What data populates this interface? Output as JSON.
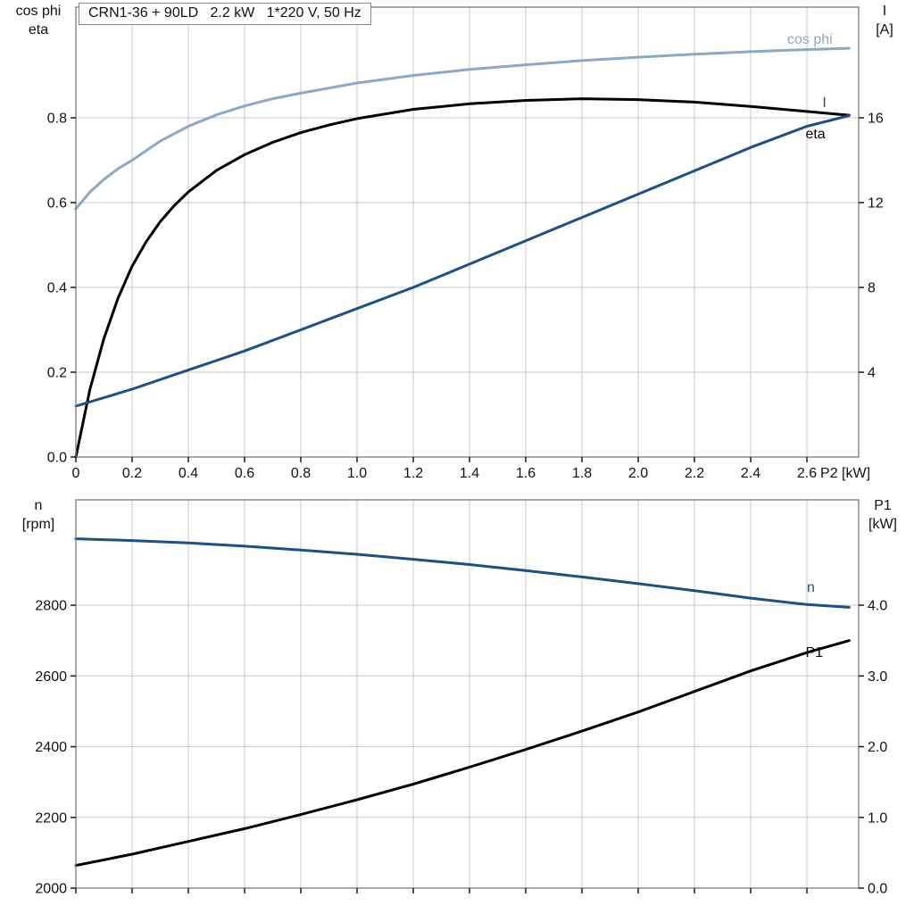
{
  "title": "CRN1-36 + 90LD   2.2 kW   1*220 V, 50 Hz",
  "colors": {
    "cos_phi": "#8aa9c9",
    "current": "#1b5186",
    "speed": "#1b5186",
    "eta": "#000000",
    "power": "#000000",
    "grid": "#c9c9c9"
  },
  "chart_data": [
    {
      "type": "line",
      "title": "CRN1-36 + 90LD   2.2 kW   1*220 V, 50 Hz",
      "x_axis": {
        "unit_label": "P2 [kW]",
        "range": [
          0,
          2.784
        ],
        "tick_values": [
          0,
          0.2,
          0.4,
          0.6,
          0.8,
          1.0,
          1.2,
          1.4,
          1.6,
          1.8,
          2.0,
          2.2,
          2.4,
          2.6
        ],
        "tick_labels": [
          "0",
          "0.2",
          "0.4",
          "0.6",
          "0.8",
          "1.0",
          "1.2",
          "1.4",
          "1.6",
          "1.8",
          "2.0",
          "2.2",
          "2.4",
          "2.6"
        ]
      },
      "left_axis": {
        "label_lines": [
          "cos phi",
          "eta"
        ],
        "range": [
          0,
          1.061
        ],
        "tick_values": [
          0,
          0.2,
          0.4,
          0.6,
          0.8
        ],
        "tick_labels": [
          "0.0",
          "0.2",
          "0.4",
          "0.6",
          "0.8"
        ]
      },
      "right_axis": {
        "label_lines": [
          "I",
          "[A]"
        ],
        "range": [
          0,
          21.22
        ],
        "tick_values": [
          4,
          8,
          12,
          16
        ],
        "tick_labels": [
          "4",
          "8",
          "12",
          "16"
        ]
      },
      "series": [
        {
          "id": "cos-phi",
          "name": "cos phi",
          "axis": "left",
          "color": "#8aa9c9",
          "label": {
            "x": 2.53,
            "y": 0.975
          },
          "x": [
            0,
            0.05,
            0.1,
            0.15,
            0.2,
            0.3,
            0.4,
            0.5,
            0.6,
            0.7,
            0.8,
            1.0,
            1.2,
            1.4,
            1.6,
            1.8,
            2.0,
            2.2,
            2.4,
            2.6,
            2.75
          ],
          "y": [
            0.585,
            0.625,
            0.655,
            0.68,
            0.7,
            0.745,
            0.78,
            0.807,
            0.828,
            0.845,
            0.858,
            0.882,
            0.9,
            0.914,
            0.925,
            0.935,
            0.943,
            0.95,
            0.956,
            0.961,
            0.964
          ]
        },
        {
          "id": "eta",
          "name": "eta",
          "axis": "left",
          "color": "#000000",
          "label": {
            "x": 2.595,
            "y": 0.752
          },
          "x": [
            0,
            0.05,
            0.1,
            0.15,
            0.2,
            0.25,
            0.3,
            0.35,
            0.4,
            0.5,
            0.6,
            0.7,
            0.8,
            0.9,
            1.0,
            1.2,
            1.4,
            1.6,
            1.8,
            2.0,
            2.2,
            2.4,
            2.6,
            2.75
          ],
          "y": [
            0,
            0.16,
            0.28,
            0.375,
            0.45,
            0.508,
            0.555,
            0.593,
            0.625,
            0.676,
            0.713,
            0.742,
            0.765,
            0.783,
            0.798,
            0.82,
            0.833,
            0.841,
            0.845,
            0.843,
            0.837,
            0.827,
            0.815,
            0.806
          ]
        },
        {
          "id": "current-I",
          "name": "I",
          "axis": "right",
          "color": "#1b5186",
          "label": {
            "x": 2.655,
            "y": 16.5
          },
          "x": [
            0,
            0.2,
            0.4,
            0.6,
            0.8,
            1.0,
            1.2,
            1.4,
            1.6,
            1.8,
            2.0,
            2.2,
            2.4,
            2.6,
            2.75
          ],
          "y": [
            2.4,
            3.2,
            4.1,
            5.0,
            6.0,
            7.0,
            8.0,
            9.1,
            10.2,
            11.3,
            12.4,
            13.5,
            14.6,
            15.6,
            16.1
          ]
        }
      ]
    },
    {
      "type": "line",
      "title": "",
      "x_axis": {
        "unit_label": "",
        "range": [
          0,
          2.784
        ],
        "tick_values": [
          0,
          0.2,
          0.4,
          0.6,
          0.8,
          1.0,
          1.2,
          1.4,
          1.6,
          1.8,
          2.0,
          2.2,
          2.4,
          2.6
        ],
        "tick_labels": []
      },
      "left_axis": {
        "label_lines": [
          "n",
          "[rpm]"
        ],
        "range": [
          2000,
          3098
        ],
        "tick_values": [
          2000,
          2200,
          2400,
          2600,
          2800
        ],
        "tick_labels": [
          "2000",
          "2200",
          "2400",
          "2600",
          "2800"
        ]
      },
      "right_axis": {
        "label_lines": [
          "P1",
          "[kW]"
        ],
        "range": [
          0,
          5.49
        ],
        "tick_values": [
          0,
          1,
          2,
          3,
          4
        ],
        "tick_labels": [
          "0.0",
          "1.0",
          "2.0",
          "3.0",
          "4.0"
        ]
      },
      "series": [
        {
          "id": "speed-n",
          "name": "n",
          "axis": "left",
          "color": "#1b5186",
          "label": {
            "x": 2.6,
            "y": 2838
          },
          "x": [
            0,
            0.2,
            0.4,
            0.6,
            0.8,
            1.0,
            1.2,
            1.4,
            1.6,
            1.8,
            2.0,
            2.2,
            2.4,
            2.6,
            2.75
          ],
          "y": [
            2988,
            2983,
            2976,
            2967,
            2956,
            2944,
            2930,
            2915,
            2898,
            2880,
            2861,
            2841,
            2820,
            2802,
            2794
          ]
        },
        {
          "id": "power-P1",
          "name": "P1",
          "axis": "right",
          "color": "#000000",
          "label": {
            "x": 2.595,
            "y": 3.27
          },
          "x": [
            0,
            0.2,
            0.4,
            0.6,
            0.8,
            1.0,
            1.2,
            1.4,
            1.6,
            1.8,
            2.0,
            2.2,
            2.4,
            2.6,
            2.75
          ],
          "y": [
            0.32,
            0.48,
            0.66,
            0.84,
            1.04,
            1.25,
            1.47,
            1.71,
            1.96,
            2.22,
            2.49,
            2.78,
            3.07,
            3.33,
            3.5
          ]
        }
      ]
    }
  ]
}
